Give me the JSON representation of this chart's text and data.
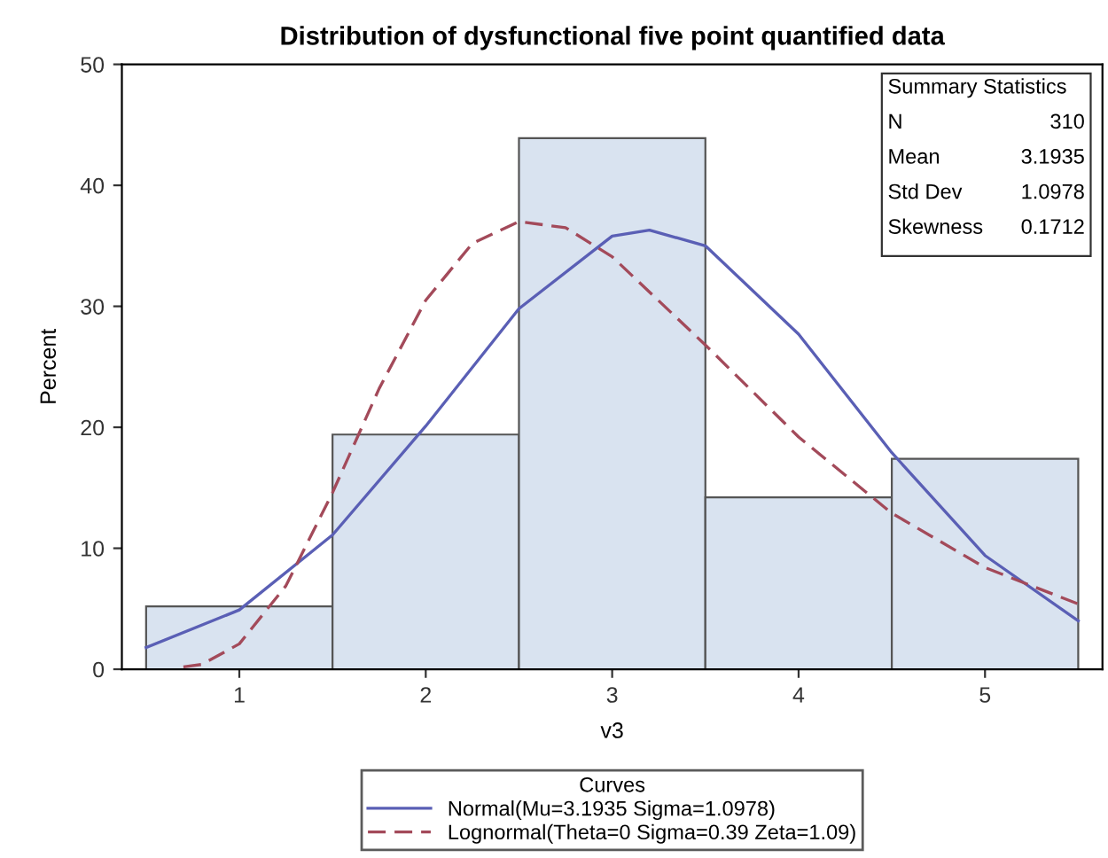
{
  "chart_data": {
    "type": "histogram",
    "title": "Distribution of dysfunctional five point quantified data",
    "xlabel": "v3",
    "ylabel": "Percent",
    "legend_title": "Curves",
    "bins": [
      0.5,
      1.5,
      2.5,
      3.5,
      4.5,
      5.5
    ],
    "values": [
      5.2,
      19.4,
      43.9,
      14.2,
      17.4
    ],
    "color": "#d9e3f0",
    "series": [
      {
        "type": "line",
        "name": "Normal(Mu=3.1935 Sigma=1.0978)",
        "color": "#5a5fb5",
        "line_style": "solid",
        "x": [
          0.5,
          1,
          1.5,
          2,
          2.5,
          3,
          3.2,
          3.5,
          4,
          4.5,
          5,
          5.5
        ],
        "values": [
          1.8,
          4.9,
          11.1,
          20.1,
          29.8,
          35.8,
          36.3,
          35.0,
          27.7,
          17.9,
          9.4,
          4.0
        ]
      },
      {
        "type": "line",
        "name": "Lognormal(Theta=0 Sigma=0.39 Zeta=1.09)",
        "color": "#a34a5a",
        "line_style": "dashed",
        "x": [
          0.7,
          0.8,
          1,
          1.25,
          1.5,
          1.75,
          2,
          2.25,
          2.5,
          2.75,
          3,
          3.5,
          4,
          4.5,
          5,
          5.5
        ],
        "values": [
          0.2,
          0.4,
          2.1,
          6.9,
          14.6,
          23.2,
          30.5,
          35.2,
          37.0,
          36.5,
          34.1,
          26.8,
          19.2,
          12.9,
          8.4,
          5.4
        ]
      }
    ],
    "xlim": [
      0.37,
      5.63
    ],
    "xticks": [
      1,
      2,
      3,
      4,
      5
    ],
    "ylim": [
      0,
      50
    ],
    "yticks": [
      0,
      10,
      20,
      30,
      40,
      50
    ],
    "grid": false,
    "legend": "bottom",
    "annotations": [
      "Summary Statistics",
      "N",
      "310",
      "Mean",
      "3.1935",
      "Std Dev",
      "1.0978",
      "Skewness",
      "0.1712"
    ]
  }
}
